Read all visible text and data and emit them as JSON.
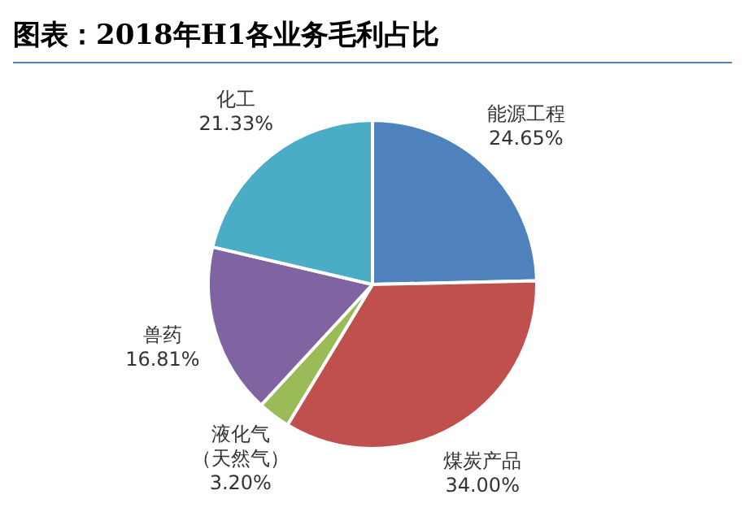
{
  "chart_data": {
    "type": "pie",
    "title": "图表：2018年H1各业务毛利占比",
    "categories": [
      "能源工程",
      "煤炭产品",
      "液化气（天然气）",
      "兽药",
      "化工"
    ],
    "values": [
      24.65,
      34.0,
      3.2,
      16.81,
      21.33
    ],
    "value_labels": [
      "24.65%",
      "34.00%",
      "3.20%",
      "16.81%",
      "21.33%"
    ],
    "colors": [
      "#4f81bd",
      "#c0504d",
      "#9bbb59",
      "#8064a2",
      "#4bacc6"
    ],
    "legend": false
  }
}
